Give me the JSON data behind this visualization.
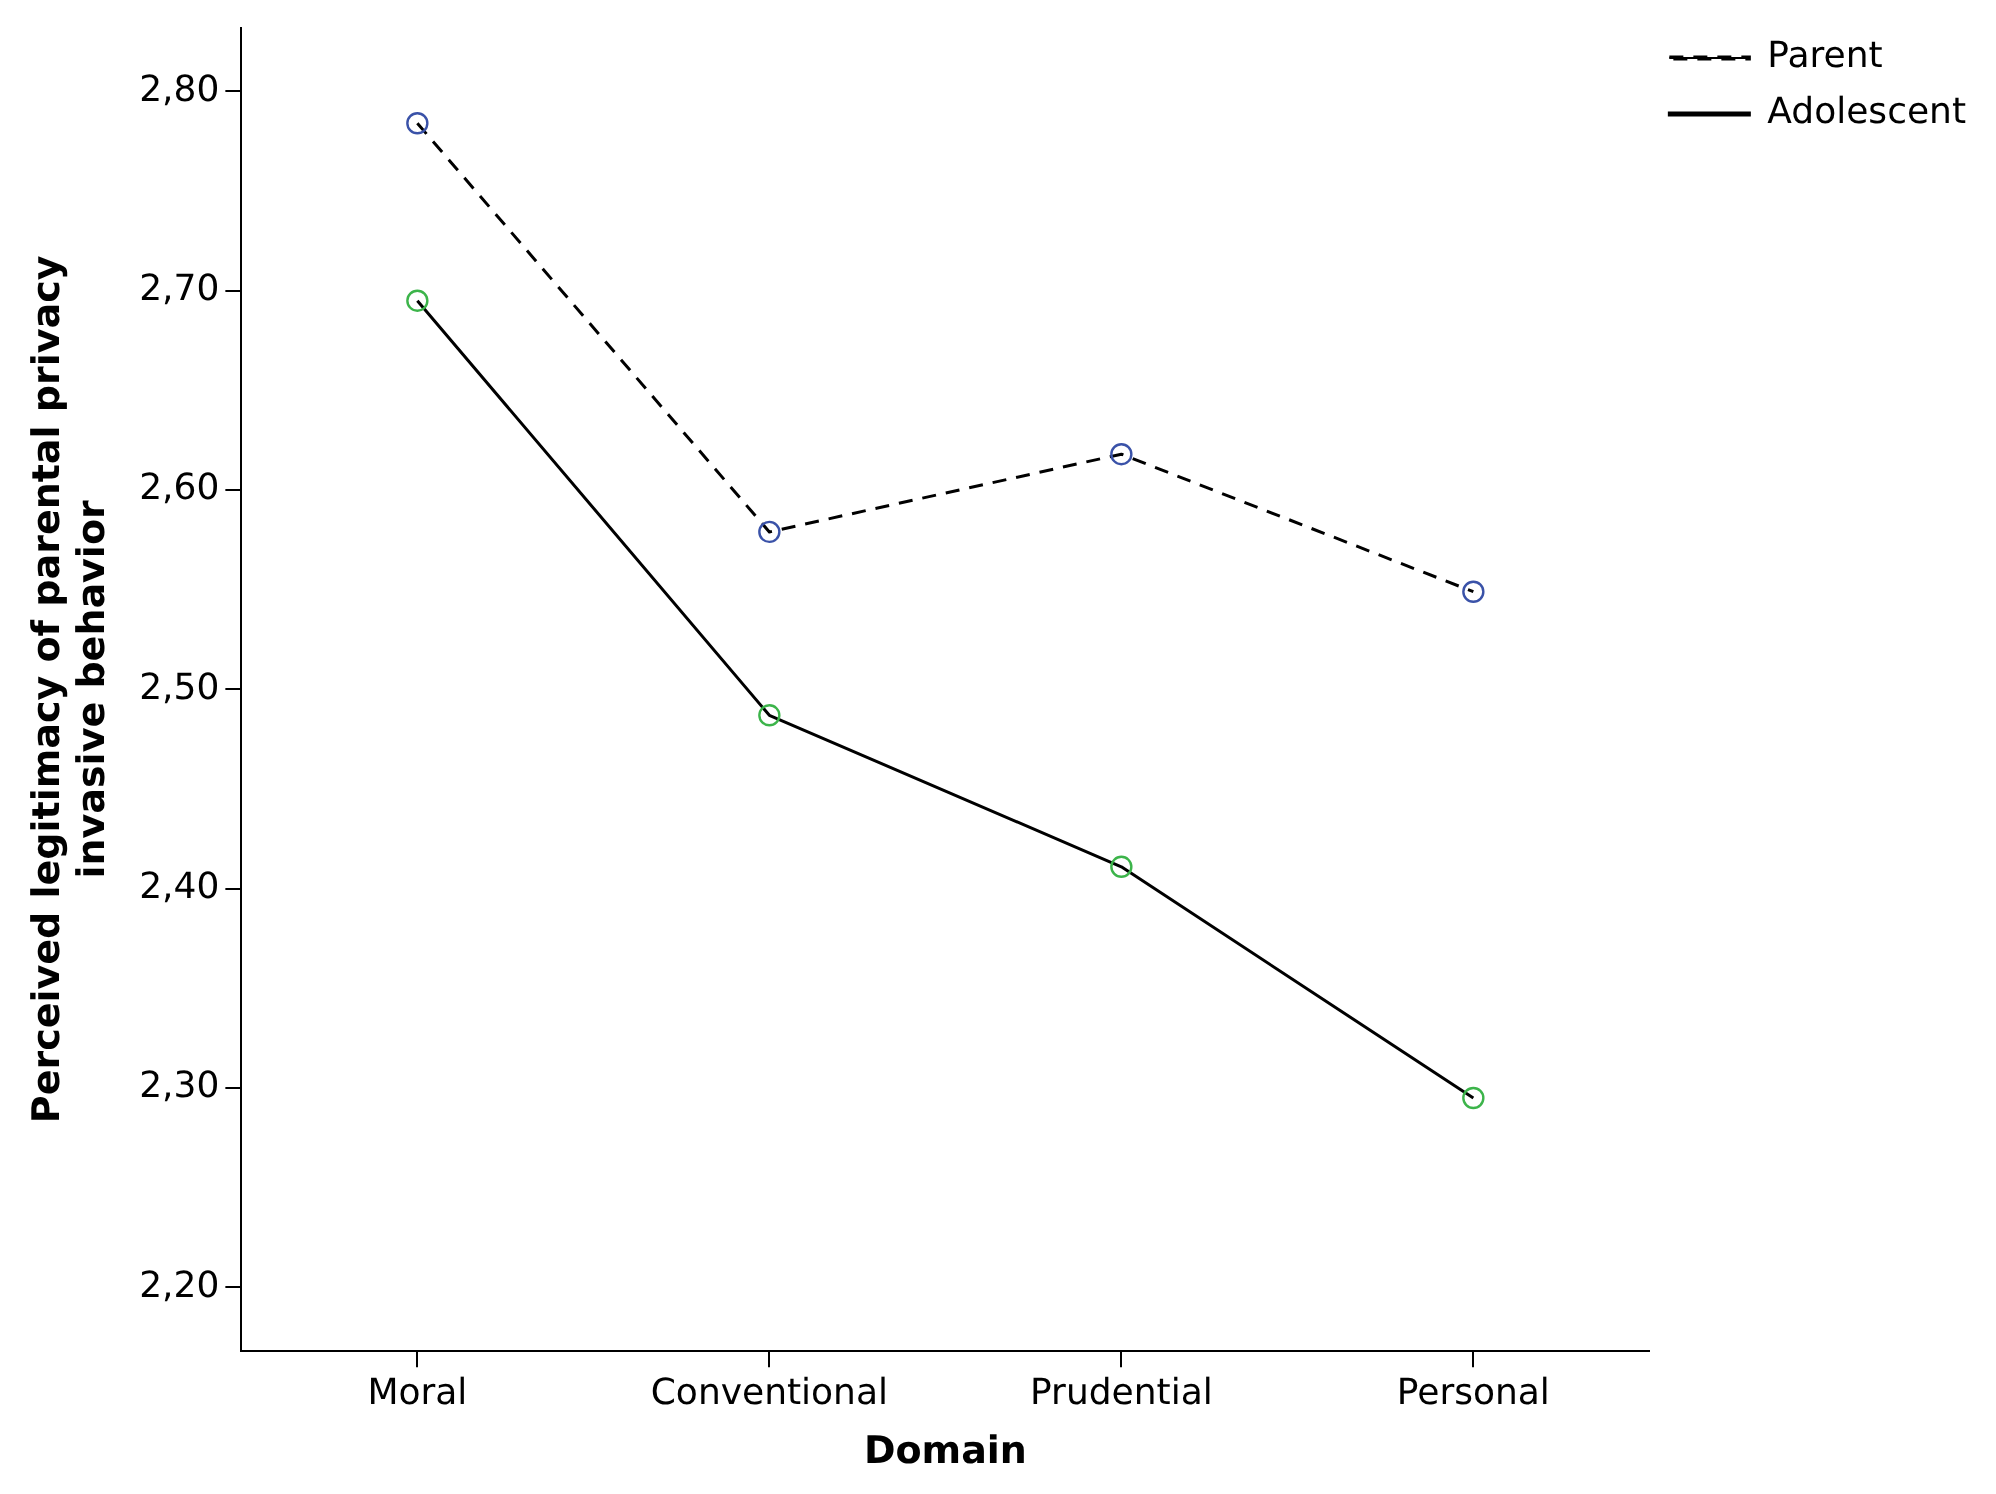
{
  "chart_data": {
    "type": "line",
    "xlabel": "Domain",
    "ylabel": "Perceived legitimacy of parental privacy invasive behavior",
    "categories": [
      "Moral",
      "Conventional",
      "Prudential",
      "Personal"
    ],
    "series": [
      {
        "name": "Parent",
        "color": "#000000",
        "colors": [
          "#3a52a8",
          "#3a52a8",
          "#3a52a8",
          "#3a52a8"
        ],
        "line_style": "dashed",
        "values": [
          2.784,
          2.579,
          2.618,
          2.549
        ]
      },
      {
        "name": "Adolescent",
        "color": "#000000",
        "colors": [
          "#3cb44a",
          "#3cb44a",
          "#3cb44a",
          "#3cb44a"
        ],
        "line_style": "solid",
        "values": [
          2.695,
          2.487,
          2.411,
          2.295
        ]
      }
    ],
    "ylim": [
      2.168,
      2.832
    ],
    "yticks": [
      {
        "value": 2.2,
        "label": "2,20"
      },
      {
        "value": 2.3,
        "label": "2,30"
      },
      {
        "value": 2.4,
        "label": "2,40"
      },
      {
        "value": 2.5,
        "label": "2,50"
      },
      {
        "value": 2.6,
        "label": "2,60"
      },
      {
        "value": 2.7,
        "label": "2,70"
      },
      {
        "value": 2.8,
        "label": "2,80"
      }
    ],
    "marker": "circle",
    "grid": false,
    "legend": "top right"
  }
}
